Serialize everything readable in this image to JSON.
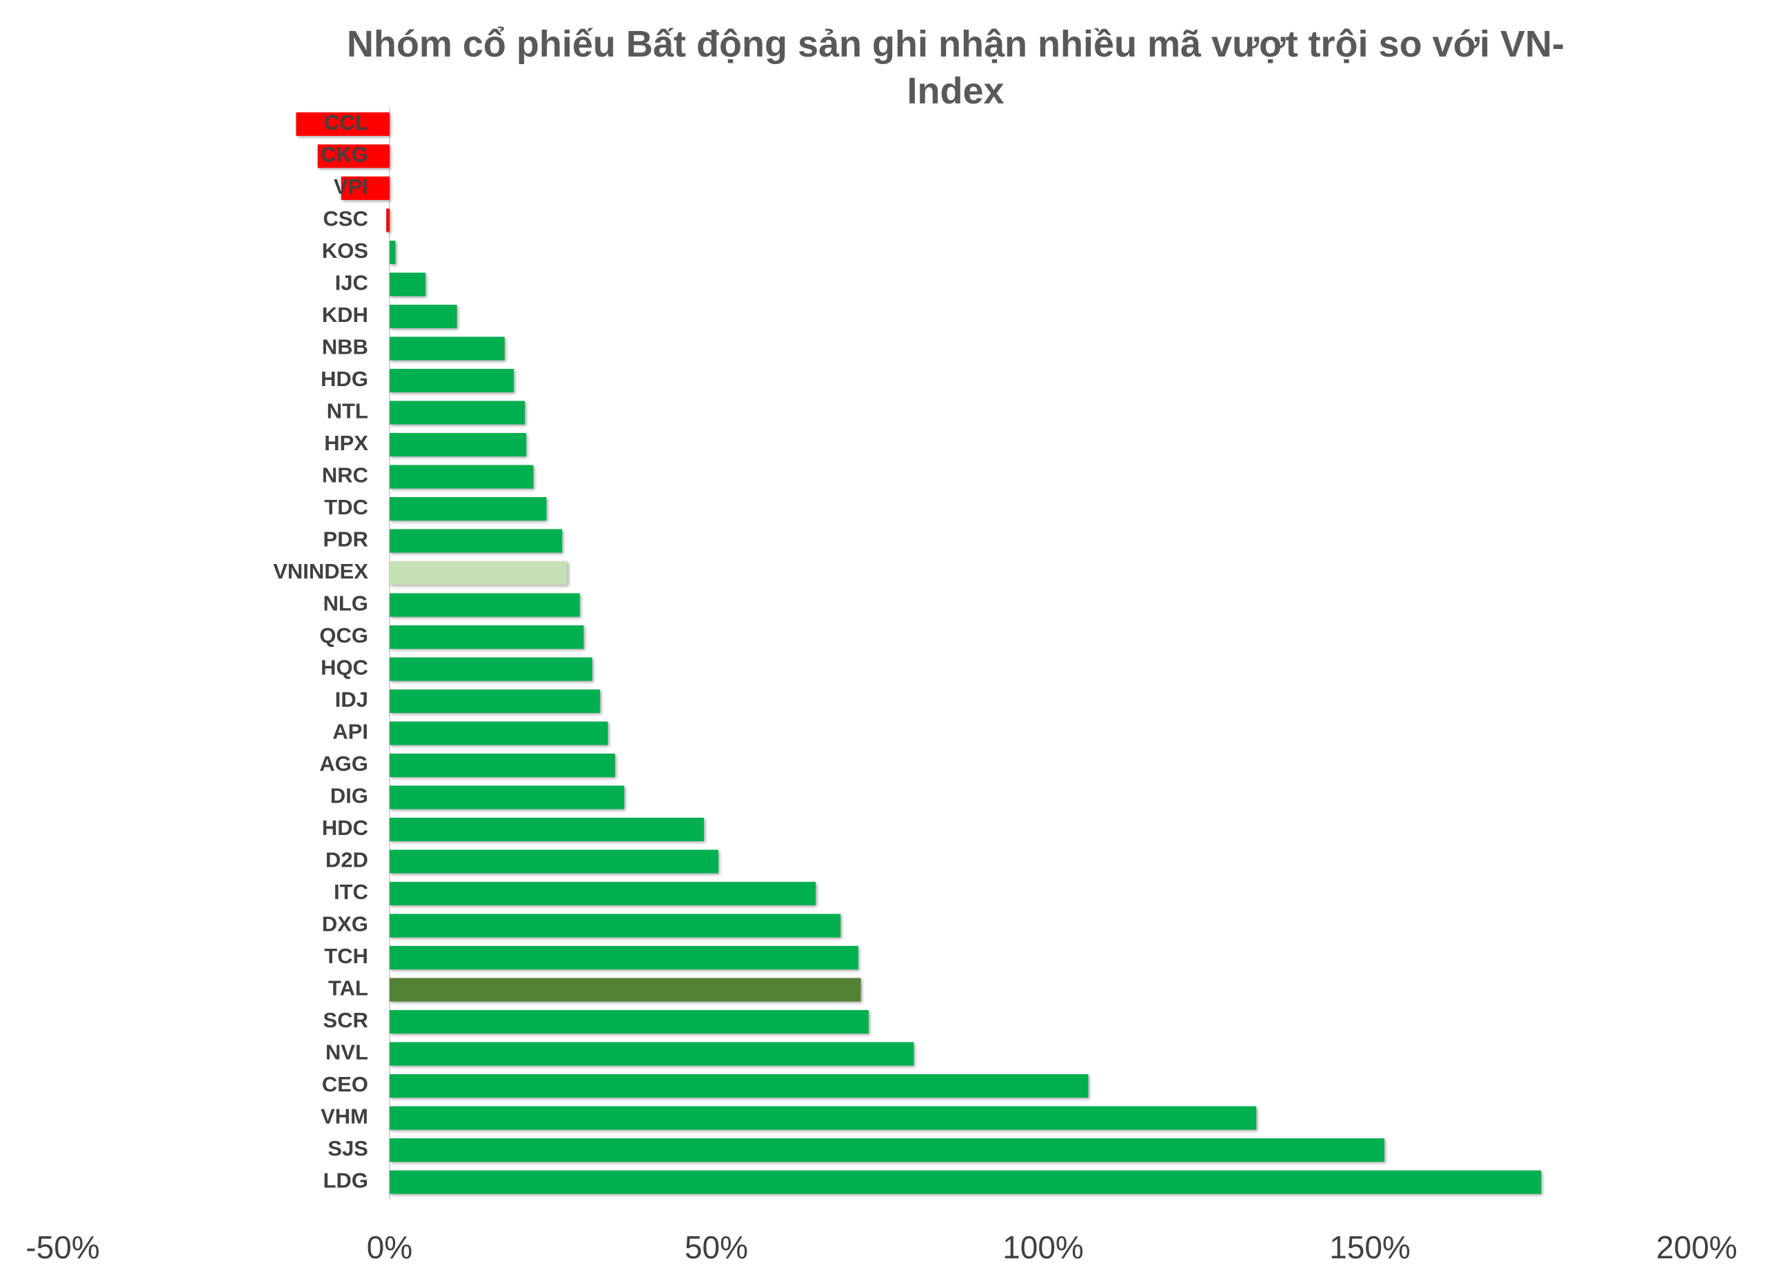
{
  "chart_data": {
    "type": "hbar",
    "title": "Nhóm cổ phiếu Bất động sản ghi nhận nhiều mã vượt trội so với VN-Index",
    "categories": [
      "CCL",
      "CKG",
      "VPI",
      "CSC",
      "KOS",
      "IJC",
      "KDH",
      "NBB",
      "HDG",
      "NTL",
      "HPX",
      "NRC",
      "TDC",
      "PDR",
      "VNINDEX",
      "NLG",
      "QCG",
      "HQC",
      "IDJ",
      "API",
      "AGG",
      "DIG",
      "HDC",
      "D2D",
      "ITC",
      "DXG",
      "TCH",
      "TAL",
      "SCR",
      "NVL",
      "CEO",
      "VHM",
      "SJS",
      "LDG"
    ],
    "values": [
      -14.3,
      -11,
      -7.4,
      -0.5,
      0.9,
      5.5,
      10.3,
      17.6,
      19,
      20.7,
      20.9,
      22,
      24,
      26.4,
      27.2,
      29.1,
      29.7,
      31,
      32.2,
      33.4,
      34.5,
      35.9,
      48.1,
      50.3,
      65.2,
      69,
      71.7,
      72.1,
      73.3,
      80.2,
      106.9,
      132.6,
      152.2,
      176.2
    ],
    "colors": [
      "#ff0000",
      "#ff0000",
      "#ff0000",
      "#ff0000",
      "#00b050",
      "#00b050",
      "#00b050",
      "#00b050",
      "#00b050",
      "#00b050",
      "#00b050",
      "#00b050",
      "#00b050",
      "#00b050",
      "#c5e0b4",
      "#00b050",
      "#00b050",
      "#00b050",
      "#00b050",
      "#00b050",
      "#00b050",
      "#00b050",
      "#00b050",
      "#00b050",
      "#00b050",
      "#00b050",
      "#00b050",
      "#548235",
      "#00b050",
      "#00b050",
      "#00b050",
      "#00b050",
      "#00b050",
      "#00b050"
    ],
    "xlim": [
      -50,
      200
    ],
    "xticks": [
      {
        "value": -50,
        "label": "-50%"
      },
      {
        "value": 0,
        "label": "0%"
      },
      {
        "value": 50,
        "label": "50%"
      },
      {
        "value": 100,
        "label": "100%"
      },
      {
        "value": 150,
        "label": "150%"
      },
      {
        "value": 200,
        "label": "200%"
      }
    ],
    "grid": false
  }
}
